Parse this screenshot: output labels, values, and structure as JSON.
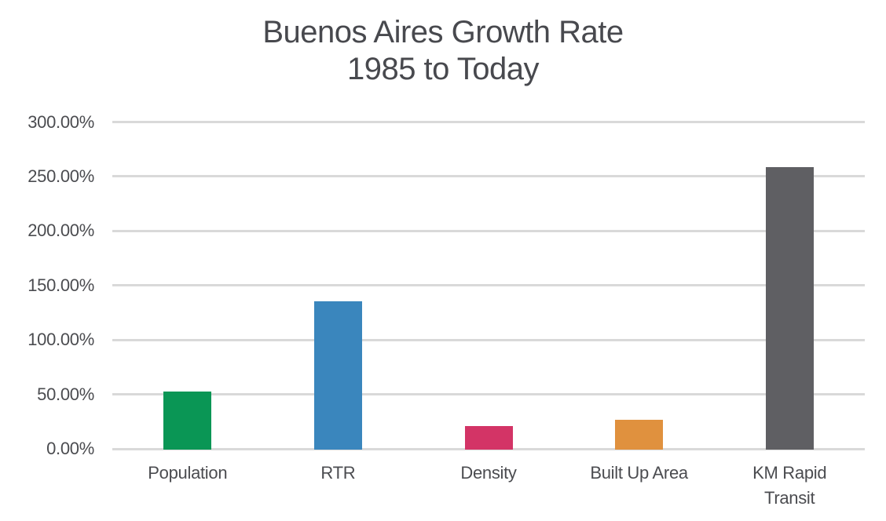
{
  "chart_data": {
    "type": "bar",
    "title": "Buenos Aires Growth Rate",
    "subtitle": "1985 to Today",
    "categories": [
      "Population",
      "RTR",
      "Density",
      "Built Up Area",
      "KM Rapid Transit"
    ],
    "category_label_lines": [
      [
        "Population"
      ],
      [
        "RTR"
      ],
      [
        "Density"
      ],
      [
        "Built Up Area"
      ],
      [
        "KM Rapid",
        "Transit"
      ]
    ],
    "values": [
      52.5,
      135.5,
      21,
      26.5,
      258.5
    ],
    "value_unit": "percent",
    "bar_colors": [
      "#0A9655",
      "#3A86BD",
      "#D33466",
      "#E0913E",
      "#5F5F63"
    ],
    "ylim": [
      0,
      300
    ],
    "y_ticks": [
      {
        "value": 0,
        "label": "0.00%"
      },
      {
        "value": 50,
        "label": "50.00%"
      },
      {
        "value": 100,
        "label": "100.00%"
      },
      {
        "value": 150,
        "label": "150.00%"
      },
      {
        "value": 200,
        "label": "200.00%"
      },
      {
        "value": 250,
        "label": "250.00%"
      },
      {
        "value": 300,
        "label": "300.00%"
      }
    ],
    "xlabel": "",
    "ylabel": "",
    "grid": true,
    "legend": false,
    "colors": {
      "text": "#4B4C50",
      "grid": "#D9D9D9",
      "background": "#FFFFFF"
    }
  }
}
